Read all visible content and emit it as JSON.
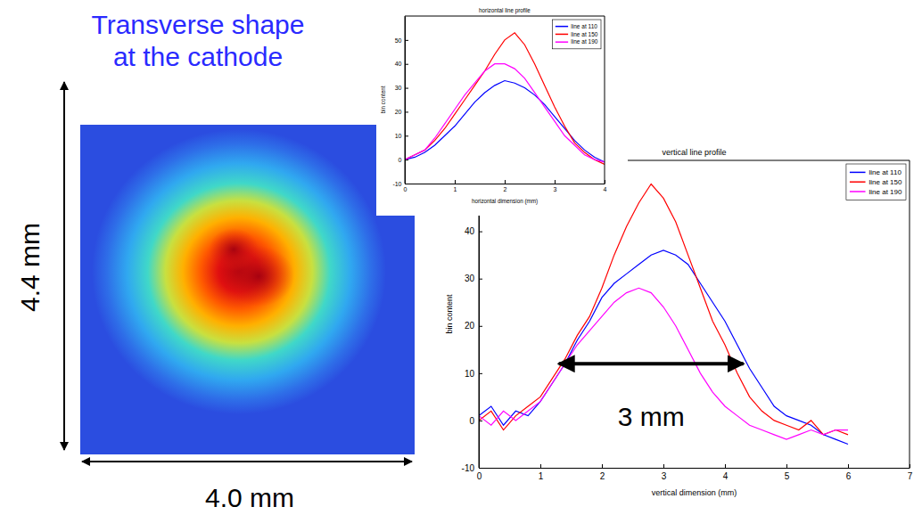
{
  "slide": {
    "title": "Transverse shape at the cathode",
    "image": {
      "height_label": "4.4 mm",
      "width_label": "4.0 mm"
    }
  },
  "chart_data": [
    {
      "type": "line",
      "title": "horizontal line profile",
      "x_label": "horizontal dimension (mm)",
      "y_label": "bin content",
      "x": [
        0,
        0.2,
        0.4,
        0.6,
        0.8,
        1.0,
        1.2,
        1.4,
        1.6,
        1.8,
        2.0,
        2.2,
        2.4,
        2.6,
        2.8,
        3.0,
        3.2,
        3.4,
        3.6,
        3.8,
        4.0
      ],
      "series": [
        {
          "name": "line at 110",
          "color": "#0000ff",
          "values": [
            0,
            1,
            3,
            6,
            10,
            14,
            19,
            24,
            28,
            31,
            33,
            32,
            30,
            27,
            23,
            18,
            13,
            8,
            4,
            1,
            -1
          ]
        },
        {
          "name": "line at 150",
          "color": "#ff0000",
          "values": [
            0,
            2,
            4,
            8,
            13,
            19,
            25,
            31,
            37,
            44,
            50,
            53,
            48,
            40,
            31,
            22,
            14,
            7,
            3,
            0,
            -2
          ]
        },
        {
          "name": "line at 190",
          "color": "#ff00ff",
          "values": [
            0,
            2,
            4,
            9,
            15,
            21,
            27,
            32,
            37,
            40,
            40,
            38,
            34,
            28,
            22,
            16,
            10,
            6,
            2,
            0,
            -1
          ]
        }
      ],
      "xlim": [
        0,
        4
      ],
      "xticks": [
        0,
        1,
        2,
        3,
        4
      ],
      "ylim": [
        -10,
        60
      ],
      "yticks": [
        -10,
        0,
        10,
        20,
        30,
        40,
        50
      ],
      "grid": false,
      "legend": "top-right"
    },
    {
      "type": "line",
      "title": "vertical line profile",
      "x_label": "vertical dimension (mm)",
      "y_label": "bin content",
      "x": [
        0,
        0.2,
        0.4,
        0.6,
        0.8,
        1.0,
        1.2,
        1.4,
        1.6,
        1.8,
        2.0,
        2.2,
        2.4,
        2.6,
        2.8,
        3.0,
        3.2,
        3.4,
        3.6,
        3.8,
        4.0,
        4.2,
        4.4,
        4.6,
        4.8,
        5.0,
        5.2,
        5.4,
        5.6,
        5.8,
        6.0
      ],
      "series": [
        {
          "name": "line at 110",
          "color": "#0000ff",
          "values": [
            1,
            3,
            -1,
            2,
            1,
            4,
            8,
            12,
            17,
            21,
            26,
            29,
            31,
            33,
            35,
            36,
            35,
            33,
            29,
            25,
            21,
            16,
            11,
            7,
            3,
            1,
            0,
            -1,
            -3,
            -4,
            -5
          ]
        },
        {
          "name": "line at 150",
          "color": "#ff0000",
          "values": [
            0,
            2,
            -2,
            1,
            3,
            5,
            9,
            13,
            18,
            22,
            28,
            35,
            41,
            46,
            50,
            47,
            42,
            35,
            28,
            21,
            16,
            10,
            5,
            2,
            0,
            -1,
            -2,
            0,
            -3,
            -2,
            -3
          ]
        },
        {
          "name": "line at 190",
          "color": "#ff00ff",
          "values": [
            1,
            -1,
            2,
            0,
            2,
            4,
            8,
            12,
            16,
            19,
            22,
            25,
            27,
            28,
            27,
            24,
            20,
            15,
            10,
            6,
            3,
            1,
            -1,
            -2,
            -3,
            -4,
            -3,
            -2,
            -3,
            -2,
            -2
          ]
        }
      ],
      "xlim": [
        0,
        7
      ],
      "xticks": [
        0,
        1,
        2,
        3,
        4,
        5,
        6,
        7
      ],
      "ylim": [
        -10,
        55
      ],
      "yticks": [
        -10,
        0,
        10,
        20,
        30,
        40
      ],
      "grid": false,
      "legend": "top-right",
      "annotations": [
        {
          "text": "3 mm",
          "x": [
            1.3,
            4.3
          ],
          "y": 12
        }
      ]
    }
  ]
}
